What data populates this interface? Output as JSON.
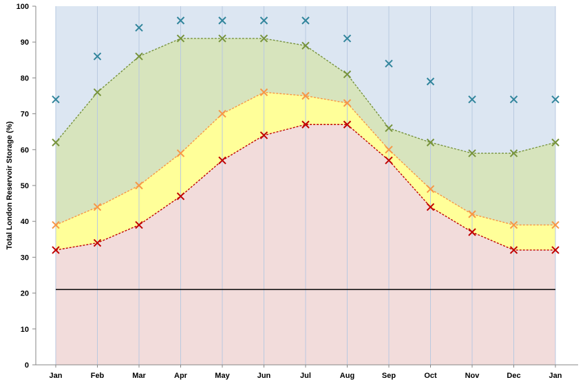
{
  "chart_data": {
    "type": "area",
    "ylabel": "Total London Reservoir Storage (%)",
    "xlabel": "",
    "title": "",
    "categories": [
      "Jan",
      "Feb",
      "Mar",
      "Apr",
      "May",
      "Jun",
      "Jul",
      "Aug",
      "Sep",
      "Oct",
      "Nov",
      "Dec",
      "Jan"
    ],
    "ylim": [
      0,
      100
    ],
    "yticks": [
      0,
      10,
      20,
      30,
      40,
      50,
      60,
      70,
      80,
      90,
      100
    ],
    "grid": "vertical",
    "legend": "none",
    "reference_line": {
      "value": 21,
      "color": "#000000"
    },
    "background_color": "#dce6f2",
    "series": [
      {
        "values": [
          74,
          86,
          94,
          96,
          96,
          96,
          96,
          91,
          84,
          79,
          74,
          74,
          74
        ],
        "color": "#31859c",
        "marker": "x",
        "line": false,
        "fill": null
      },
      {
        "values": [
          62,
          76,
          86,
          91,
          91,
          91,
          89,
          81,
          66,
          62,
          59,
          59,
          62
        ],
        "color": "#77933c",
        "marker": "x",
        "line": "dashed",
        "fill": "#d7e4bd"
      },
      {
        "values": [
          39,
          44,
          50,
          59,
          70,
          76,
          75,
          73,
          60,
          49,
          42,
          39,
          39
        ],
        "color": "#f79646",
        "marker": "x",
        "line": "dashed",
        "fill": "#ffff99"
      },
      {
        "values": [
          32,
          34,
          39,
          47,
          57,
          64,
          67,
          67,
          57,
          44,
          37,
          32,
          32
        ],
        "color": "#c00000",
        "marker": "x",
        "line": "dashed",
        "fill": "#f2dcdb"
      }
    ]
  }
}
